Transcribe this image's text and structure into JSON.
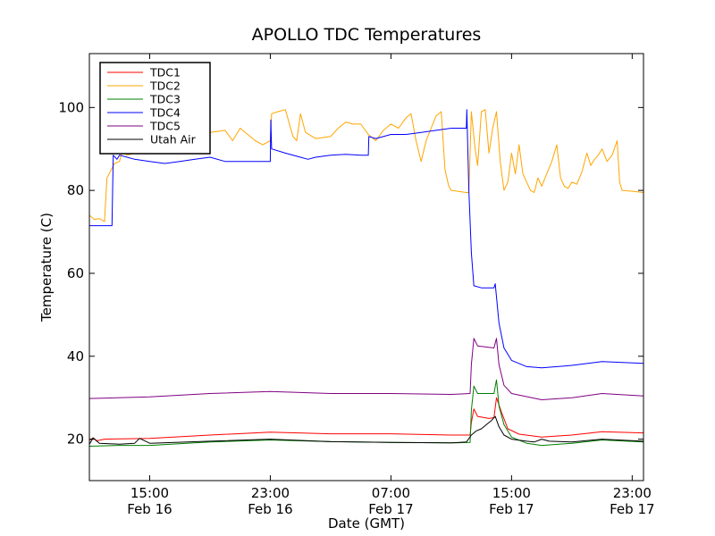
{
  "chart_data": {
    "type": "line",
    "title": "APOLLO TDC Temperatures",
    "xlabel": "Date (GMT)",
    "ylabel": "Temperature (C)",
    "xlim": [
      "2014-02-16 11:00",
      "2014-02-17 23:45"
    ],
    "ylim": [
      10,
      113
    ],
    "y_ticks": [
      20,
      40,
      60,
      80,
      100
    ],
    "x_ticks": [
      {
        "t": "2014-02-16 15:00",
        "time": "15:00",
        "date": "Feb 16"
      },
      {
        "t": "2014-02-16 23:00",
        "time": "23:00",
        "date": "Feb 16"
      },
      {
        "t": "2014-02-17 07:00",
        "time": "07:00",
        "date": "Feb 17"
      },
      {
        "t": "2014-02-17 15:00",
        "time": "15:00",
        "date": "Feb 17"
      },
      {
        "t": "2014-02-17 23:00",
        "time": "23:00",
        "date": "Feb 17"
      }
    ],
    "grid": false,
    "legend_position": "top-left",
    "series": [
      {
        "name": "TDC1",
        "color": "#ff0000",
        "points": [
          [
            "2014-02-16 11:00",
            19.7
          ],
          [
            "2014-02-16 11:15",
            20.3
          ],
          [
            "2014-02-16 11:30",
            19.6
          ],
          [
            "2014-02-16 12:00",
            20.0
          ],
          [
            "2014-02-16 15:00",
            20.2
          ],
          [
            "2014-02-16 19:00",
            21.0
          ],
          [
            "2014-02-16 23:00",
            21.7
          ],
          [
            "2014-02-17 03:00",
            21.3
          ],
          [
            "2014-02-17 07:00",
            21.3
          ],
          [
            "2014-02-17 11:00",
            21.0
          ],
          [
            "2014-02-17 12:15",
            21.0
          ],
          [
            "2014-02-17 12:20",
            24.0
          ],
          [
            "2014-02-17 12:30",
            27.3
          ],
          [
            "2014-02-17 12:45",
            25.5
          ],
          [
            "2014-02-17 13:30",
            25.0
          ],
          [
            "2014-02-17 13:50",
            25.2
          ],
          [
            "2014-02-17 14:00",
            30.0
          ],
          [
            "2014-02-17 14:20",
            26.5
          ],
          [
            "2014-02-17 14:45",
            22.5
          ],
          [
            "2014-02-17 15:30",
            21.2
          ],
          [
            "2014-02-17 17:00",
            20.5
          ],
          [
            "2014-02-17 19:00",
            21.0
          ],
          [
            "2014-02-17 21:00",
            21.8
          ],
          [
            "2014-02-17 23:45",
            21.5
          ]
        ]
      },
      {
        "name": "TDC2",
        "color": "#ffa500",
        "points": [
          [
            "2014-02-16 11:00",
            74.0
          ],
          [
            "2014-02-16 11:20",
            73.0
          ],
          [
            "2014-02-16 11:40",
            73.2
          ],
          [
            "2014-02-16 12:00",
            72.5
          ],
          [
            "2014-02-16 12:10",
            83.0
          ],
          [
            "2014-02-16 12:40",
            86.5
          ],
          [
            "2014-02-16 13:00",
            87.0
          ],
          [
            "2014-02-16 13:10",
            89.5
          ],
          [
            "2014-02-16 13:30",
            88.5
          ],
          [
            "2014-02-16 14:00",
            89.0
          ],
          [
            "2014-02-16 15:00",
            90.0
          ],
          [
            "2014-02-16 16:00",
            91.5
          ],
          [
            "2014-02-16 17:00",
            92.5
          ],
          [
            "2014-02-16 18:00",
            93.0
          ],
          [
            "2014-02-16 19:00",
            94.0
          ],
          [
            "2014-02-16 20:00",
            94.5
          ],
          [
            "2014-02-16 20:30",
            92.0
          ],
          [
            "2014-02-16 21:00",
            95.0
          ],
          [
            "2014-02-16 22:00",
            92.0
          ],
          [
            "2014-02-16 22:30",
            91.0
          ],
          [
            "2014-02-16 23:00",
            92.0
          ],
          [
            "2014-02-16 23:05",
            98.5
          ],
          [
            "2014-02-16 23:30",
            99.0
          ],
          [
            "2014-02-17 00:00",
            99.5
          ],
          [
            "2014-02-17 00:30",
            93.0
          ],
          [
            "2014-02-17 00:45",
            92.0
          ],
          [
            "2014-02-17 01:00",
            98.5
          ],
          [
            "2014-02-17 01:20",
            94.0
          ],
          [
            "2014-02-17 02:00",
            92.5
          ],
          [
            "2014-02-17 03:00",
            93.0
          ],
          [
            "2014-02-17 03:30",
            95.0
          ],
          [
            "2014-02-17 04:00",
            96.5
          ],
          [
            "2014-02-17 04:30",
            96.0
          ],
          [
            "2014-02-17 05:00",
            96.0
          ],
          [
            "2014-02-17 05:30",
            93.5
          ],
          [
            "2014-02-17 06:00",
            92.0
          ],
          [
            "2014-02-17 06:30",
            94.5
          ],
          [
            "2014-02-17 07:00",
            96.0
          ],
          [
            "2014-02-17 07:30",
            95.0
          ],
          [
            "2014-02-17 08:00",
            97.5
          ],
          [
            "2014-02-17 08:20",
            98.5
          ],
          [
            "2014-02-17 08:40",
            92.0
          ],
          [
            "2014-02-17 09:00",
            87.0
          ],
          [
            "2014-02-17 09:20",
            92.0
          ],
          [
            "2014-02-17 09:40",
            95.0
          ],
          [
            "2014-02-17 10:00",
            98.0
          ],
          [
            "2014-02-17 10:20",
            99.0
          ],
          [
            "2014-02-17 10:35",
            85.0
          ],
          [
            "2014-02-17 10:50",
            81.0
          ],
          [
            "2014-02-17 11:00",
            80.0
          ],
          [
            "2014-02-17 12:00",
            79.5
          ],
          [
            "2014-02-17 12:10",
            79.5
          ],
          [
            "2014-02-17 12:20",
            99.0
          ],
          [
            "2014-02-17 12:35",
            90.0
          ],
          [
            "2014-02-17 12:45",
            86.0
          ],
          [
            "2014-02-17 13:00",
            99.0
          ],
          [
            "2014-02-17 13:15",
            99.5
          ],
          [
            "2014-02-17 13:30",
            89.0
          ],
          [
            "2014-02-17 13:45",
            95.0
          ],
          [
            "2014-02-17 14:00",
            99.0
          ],
          [
            "2014-02-17 14:15",
            87.0
          ],
          [
            "2014-02-17 14:30",
            80.0
          ],
          [
            "2014-02-17 14:45",
            82.0
          ],
          [
            "2014-02-17 15:00",
            89.0
          ],
          [
            "2014-02-17 15:15",
            84.0
          ],
          [
            "2014-02-17 15:30",
            91.0
          ],
          [
            "2014-02-17 15:45",
            84.0
          ],
          [
            "2014-02-17 16:00",
            82.0
          ],
          [
            "2014-02-17 16:15",
            80.0
          ],
          [
            "2014-02-17 16:30",
            79.5
          ],
          [
            "2014-02-17 16:45",
            83.0
          ],
          [
            "2014-02-17 17:00",
            81.0
          ],
          [
            "2014-02-17 17:20",
            84.0
          ],
          [
            "2014-02-17 17:40",
            87.0
          ],
          [
            "2014-02-17 18:00",
            91.0
          ],
          [
            "2014-02-17 18:15",
            83.0
          ],
          [
            "2014-02-17 18:30",
            81.0
          ],
          [
            "2014-02-17 18:45",
            80.5
          ],
          [
            "2014-02-17 19:00",
            82.0
          ],
          [
            "2014-02-17 19:20",
            81.5
          ],
          [
            "2014-02-17 19:40",
            84.5
          ],
          [
            "2014-02-17 20:00",
            89.0
          ],
          [
            "2014-02-17 20:15",
            86.0
          ],
          [
            "2014-02-17 20:30",
            87.5
          ],
          [
            "2014-02-17 20:45",
            88.5
          ],
          [
            "2014-02-17 21:00",
            90.0
          ],
          [
            "2014-02-17 21:20",
            87.0
          ],
          [
            "2014-02-17 21:40",
            88.5
          ],
          [
            "2014-02-17 22:00",
            92.0
          ],
          [
            "2014-02-17 22:10",
            82.0
          ],
          [
            "2014-02-17 22:20",
            80.0
          ],
          [
            "2014-02-17 23:00",
            79.8
          ],
          [
            "2014-02-17 23:45",
            79.5
          ]
        ]
      },
      {
        "name": "TDC3",
        "color": "#008000",
        "points": [
          [
            "2014-02-16 11:00",
            18.3
          ],
          [
            "2014-02-16 13:00",
            18.5
          ],
          [
            "2014-02-16 15:00",
            18.5
          ],
          [
            "2014-02-16 19:00",
            19.3
          ],
          [
            "2014-02-16 23:00",
            19.8
          ],
          [
            "2014-02-17 03:00",
            19.4
          ],
          [
            "2014-02-17 07:00",
            19.2
          ],
          [
            "2014-02-17 11:00",
            19.1
          ],
          [
            "2014-02-17 12:15",
            19.2
          ],
          [
            "2014-02-17 12:20",
            27.0
          ],
          [
            "2014-02-17 12:30",
            32.8
          ],
          [
            "2014-02-17 12:45",
            31.0
          ],
          [
            "2014-02-17 13:30",
            31.0
          ],
          [
            "2014-02-17 13:50",
            31.0
          ],
          [
            "2014-02-17 14:00",
            34.3
          ],
          [
            "2014-02-17 14:10",
            28.0
          ],
          [
            "2014-02-17 14:30",
            23.5
          ],
          [
            "2014-02-17 15:00",
            20.5
          ],
          [
            "2014-02-17 16:00",
            19.0
          ],
          [
            "2014-02-17 17:00",
            18.5
          ],
          [
            "2014-02-17 19:00",
            19.0
          ],
          [
            "2014-02-17 21:00",
            19.8
          ],
          [
            "2014-02-17 23:45",
            19.3
          ]
        ]
      },
      {
        "name": "TDC4",
        "color": "#0000ff",
        "points": [
          [
            "2014-02-16 11:00",
            71.5
          ],
          [
            "2014-02-16 12:30",
            71.5
          ],
          [
            "2014-02-16 12:35",
            88.5
          ],
          [
            "2014-02-16 12:50",
            87.5
          ],
          [
            "2014-02-16 13:00",
            88.5
          ],
          [
            "2014-02-16 13:30",
            88.0
          ],
          [
            "2014-02-16 14:00",
            87.5
          ],
          [
            "2014-02-16 15:00",
            87.0
          ],
          [
            "2014-02-16 16:00",
            86.5
          ],
          [
            "2014-02-16 17:00",
            87.0
          ],
          [
            "2014-02-16 18:00",
            87.5
          ],
          [
            "2014-02-16 19:00",
            88.0
          ],
          [
            "2014-02-16 20:00",
            87.0
          ],
          [
            "2014-02-16 22:00",
            87.0
          ],
          [
            "2014-02-16 23:00",
            87.0
          ],
          [
            "2014-02-16 23:02",
            97.0
          ],
          [
            "2014-02-16 23:05",
            90.0
          ],
          [
            "2014-02-17 00:00",
            89.0
          ],
          [
            "2014-02-17 01:00",
            88.0
          ],
          [
            "2014-02-17 01:30",
            87.5
          ],
          [
            "2014-02-17 02:00",
            88.0
          ],
          [
            "2014-02-17 03:00",
            88.5
          ],
          [
            "2014-02-17 04:00",
            88.7
          ],
          [
            "2014-02-17 05:00",
            88.5
          ],
          [
            "2014-02-17 05:30",
            88.5
          ],
          [
            "2014-02-17 05:32",
            93.0
          ],
          [
            "2014-02-17 06:00",
            92.5
          ],
          [
            "2014-02-17 07:00",
            93.5
          ],
          [
            "2014-02-17 08:00",
            93.5
          ],
          [
            "2014-02-17 09:00",
            94.0
          ],
          [
            "2014-02-17 10:00",
            94.5
          ],
          [
            "2014-02-17 11:00",
            95.0
          ],
          [
            "2014-02-17 12:00",
            95.0
          ],
          [
            "2014-02-17 12:02",
            99.5
          ],
          [
            "2014-02-17 12:10",
            80.0
          ],
          [
            "2014-02-17 12:20",
            65.0
          ],
          [
            "2014-02-17 12:30",
            57.0
          ],
          [
            "2014-02-17 13:00",
            56.5
          ],
          [
            "2014-02-17 13:50",
            56.5
          ],
          [
            "2014-02-17 13:55",
            57.5
          ],
          [
            "2014-02-17 14:10",
            48.0
          ],
          [
            "2014-02-17 14:30",
            42.0
          ],
          [
            "2014-02-17 15:00",
            39.0
          ],
          [
            "2014-02-17 16:00",
            37.5
          ],
          [
            "2014-02-17 17:00",
            37.2
          ],
          [
            "2014-02-17 19:00",
            37.8
          ],
          [
            "2014-02-17 21:00",
            38.7
          ],
          [
            "2014-02-17 23:45",
            38.3
          ]
        ]
      },
      {
        "name": "TDC5",
        "color": "#800080",
        "points": [
          [
            "2014-02-16 11:00",
            29.8
          ],
          [
            "2014-02-16 15:00",
            30.2
          ],
          [
            "2014-02-16 19:00",
            31.0
          ],
          [
            "2014-02-16 23:00",
            31.5
          ],
          [
            "2014-02-17 03:00",
            31.0
          ],
          [
            "2014-02-17 07:00",
            31.0
          ],
          [
            "2014-02-17 11:00",
            30.8
          ],
          [
            "2014-02-17 12:15",
            31.0
          ],
          [
            "2014-02-17 12:20",
            38.0
          ],
          [
            "2014-02-17 12:30",
            44.3
          ],
          [
            "2014-02-17 12:45",
            42.5
          ],
          [
            "2014-02-17 13:50",
            42.0
          ],
          [
            "2014-02-17 14:00",
            44.3
          ],
          [
            "2014-02-17 14:10",
            38.0
          ],
          [
            "2014-02-17 14:30",
            33.0
          ],
          [
            "2014-02-17 15:00",
            31.0
          ],
          [
            "2014-02-17 17:00",
            29.5
          ],
          [
            "2014-02-17 19:00",
            30.0
          ],
          [
            "2014-02-17 21:00",
            31.0
          ],
          [
            "2014-02-17 23:45",
            30.4
          ]
        ]
      },
      {
        "name": "Utah Air",
        "color": "#000000",
        "points": [
          [
            "2014-02-16 11:00",
            18.8
          ],
          [
            "2014-02-16 11:15",
            20.3
          ],
          [
            "2014-02-16 11:40",
            19.0
          ],
          [
            "2014-02-16 13:00",
            18.8
          ],
          [
            "2014-02-16 14:00",
            19.0
          ],
          [
            "2014-02-16 14:20",
            20.2
          ],
          [
            "2014-02-16 14:50",
            19.3
          ],
          [
            "2014-02-16 15:00",
            19.0
          ],
          [
            "2014-02-16 19:00",
            19.5
          ],
          [
            "2014-02-16 23:00",
            20.0
          ],
          [
            "2014-02-17 03:00",
            19.4
          ],
          [
            "2014-02-17 07:00",
            19.2
          ],
          [
            "2014-02-17 11:00",
            19.1
          ],
          [
            "2014-02-17 12:00",
            19.3
          ],
          [
            "2014-02-17 12:20",
            21.0
          ],
          [
            "2014-02-17 12:40",
            22.0
          ],
          [
            "2014-02-17 13:00",
            22.5
          ],
          [
            "2014-02-17 13:20",
            23.5
          ],
          [
            "2014-02-17 13:40",
            24.5
          ],
          [
            "2014-02-17 13:55",
            25.5
          ],
          [
            "2014-02-17 14:10",
            23.0
          ],
          [
            "2014-02-17 14:30",
            21.0
          ],
          [
            "2014-02-17 15:00",
            20.0
          ],
          [
            "2014-02-17 16:00",
            19.5
          ],
          [
            "2014-02-17 16:30",
            19.3
          ],
          [
            "2014-02-17 17:00",
            20.0
          ],
          [
            "2014-02-17 17:30",
            19.5
          ],
          [
            "2014-02-17 19:00",
            19.3
          ],
          [
            "2014-02-17 21:00",
            20.0
          ],
          [
            "2014-02-17 23:45",
            19.5
          ]
        ]
      }
    ]
  }
}
